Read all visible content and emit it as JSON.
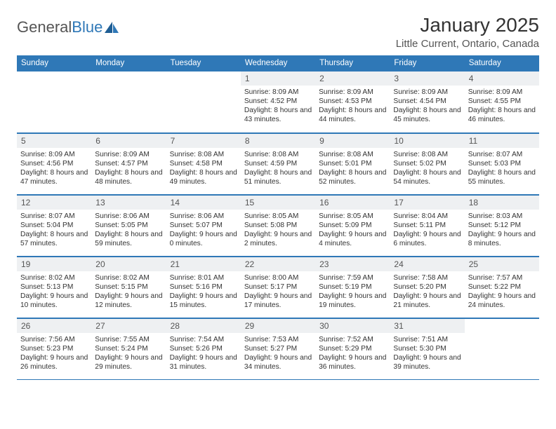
{
  "brand": {
    "name_part1": "General",
    "name_part2": "Blue"
  },
  "colors": {
    "header_bg": "#2f78b7",
    "header_text": "#ffffff",
    "daynum_bg": "#eef0f2",
    "border": "#2f78b7",
    "body_text": "#333333",
    "subtext": "#555555",
    "background": "#ffffff"
  },
  "title": "January 2025",
  "location": "Little Current, Ontario, Canada",
  "day_headers": [
    "Sunday",
    "Monday",
    "Tuesday",
    "Wednesday",
    "Thursday",
    "Friday",
    "Saturday"
  ],
  "fonts": {
    "title_size": 28,
    "location_size": 15,
    "header_size": 11.5,
    "cell_size": 10.2,
    "daynum_size": 12
  },
  "weeks": [
    [
      {
        "day": "",
        "sunrise": "",
        "sunset": "",
        "daylight": ""
      },
      {
        "day": "",
        "sunrise": "",
        "sunset": "",
        "daylight": ""
      },
      {
        "day": "",
        "sunrise": "",
        "sunset": "",
        "daylight": ""
      },
      {
        "day": "1",
        "sunrise": "Sunrise: 8:09 AM",
        "sunset": "Sunset: 4:52 PM",
        "daylight": "Daylight: 8 hours and 43 minutes."
      },
      {
        "day": "2",
        "sunrise": "Sunrise: 8:09 AM",
        "sunset": "Sunset: 4:53 PM",
        "daylight": "Daylight: 8 hours and 44 minutes."
      },
      {
        "day": "3",
        "sunrise": "Sunrise: 8:09 AM",
        "sunset": "Sunset: 4:54 PM",
        "daylight": "Daylight: 8 hours and 45 minutes."
      },
      {
        "day": "4",
        "sunrise": "Sunrise: 8:09 AM",
        "sunset": "Sunset: 4:55 PM",
        "daylight": "Daylight: 8 hours and 46 minutes."
      }
    ],
    [
      {
        "day": "5",
        "sunrise": "Sunrise: 8:09 AM",
        "sunset": "Sunset: 4:56 PM",
        "daylight": "Daylight: 8 hours and 47 minutes."
      },
      {
        "day": "6",
        "sunrise": "Sunrise: 8:09 AM",
        "sunset": "Sunset: 4:57 PM",
        "daylight": "Daylight: 8 hours and 48 minutes."
      },
      {
        "day": "7",
        "sunrise": "Sunrise: 8:08 AM",
        "sunset": "Sunset: 4:58 PM",
        "daylight": "Daylight: 8 hours and 49 minutes."
      },
      {
        "day": "8",
        "sunrise": "Sunrise: 8:08 AM",
        "sunset": "Sunset: 4:59 PM",
        "daylight": "Daylight: 8 hours and 51 minutes."
      },
      {
        "day": "9",
        "sunrise": "Sunrise: 8:08 AM",
        "sunset": "Sunset: 5:01 PM",
        "daylight": "Daylight: 8 hours and 52 minutes."
      },
      {
        "day": "10",
        "sunrise": "Sunrise: 8:08 AM",
        "sunset": "Sunset: 5:02 PM",
        "daylight": "Daylight: 8 hours and 54 minutes."
      },
      {
        "day": "11",
        "sunrise": "Sunrise: 8:07 AM",
        "sunset": "Sunset: 5:03 PM",
        "daylight": "Daylight: 8 hours and 55 minutes."
      }
    ],
    [
      {
        "day": "12",
        "sunrise": "Sunrise: 8:07 AM",
        "sunset": "Sunset: 5:04 PM",
        "daylight": "Daylight: 8 hours and 57 minutes."
      },
      {
        "day": "13",
        "sunrise": "Sunrise: 8:06 AM",
        "sunset": "Sunset: 5:05 PM",
        "daylight": "Daylight: 8 hours and 59 minutes."
      },
      {
        "day": "14",
        "sunrise": "Sunrise: 8:06 AM",
        "sunset": "Sunset: 5:07 PM",
        "daylight": "Daylight: 9 hours and 0 minutes."
      },
      {
        "day": "15",
        "sunrise": "Sunrise: 8:05 AM",
        "sunset": "Sunset: 5:08 PM",
        "daylight": "Daylight: 9 hours and 2 minutes."
      },
      {
        "day": "16",
        "sunrise": "Sunrise: 8:05 AM",
        "sunset": "Sunset: 5:09 PM",
        "daylight": "Daylight: 9 hours and 4 minutes."
      },
      {
        "day": "17",
        "sunrise": "Sunrise: 8:04 AM",
        "sunset": "Sunset: 5:11 PM",
        "daylight": "Daylight: 9 hours and 6 minutes."
      },
      {
        "day": "18",
        "sunrise": "Sunrise: 8:03 AM",
        "sunset": "Sunset: 5:12 PM",
        "daylight": "Daylight: 9 hours and 8 minutes."
      }
    ],
    [
      {
        "day": "19",
        "sunrise": "Sunrise: 8:02 AM",
        "sunset": "Sunset: 5:13 PM",
        "daylight": "Daylight: 9 hours and 10 minutes."
      },
      {
        "day": "20",
        "sunrise": "Sunrise: 8:02 AM",
        "sunset": "Sunset: 5:15 PM",
        "daylight": "Daylight: 9 hours and 12 minutes."
      },
      {
        "day": "21",
        "sunrise": "Sunrise: 8:01 AM",
        "sunset": "Sunset: 5:16 PM",
        "daylight": "Daylight: 9 hours and 15 minutes."
      },
      {
        "day": "22",
        "sunrise": "Sunrise: 8:00 AM",
        "sunset": "Sunset: 5:17 PM",
        "daylight": "Daylight: 9 hours and 17 minutes."
      },
      {
        "day": "23",
        "sunrise": "Sunrise: 7:59 AM",
        "sunset": "Sunset: 5:19 PM",
        "daylight": "Daylight: 9 hours and 19 minutes."
      },
      {
        "day": "24",
        "sunrise": "Sunrise: 7:58 AM",
        "sunset": "Sunset: 5:20 PM",
        "daylight": "Daylight: 9 hours and 21 minutes."
      },
      {
        "day": "25",
        "sunrise": "Sunrise: 7:57 AM",
        "sunset": "Sunset: 5:22 PM",
        "daylight": "Daylight: 9 hours and 24 minutes."
      }
    ],
    [
      {
        "day": "26",
        "sunrise": "Sunrise: 7:56 AM",
        "sunset": "Sunset: 5:23 PM",
        "daylight": "Daylight: 9 hours and 26 minutes."
      },
      {
        "day": "27",
        "sunrise": "Sunrise: 7:55 AM",
        "sunset": "Sunset: 5:24 PM",
        "daylight": "Daylight: 9 hours and 29 minutes."
      },
      {
        "day": "28",
        "sunrise": "Sunrise: 7:54 AM",
        "sunset": "Sunset: 5:26 PM",
        "daylight": "Daylight: 9 hours and 31 minutes."
      },
      {
        "day": "29",
        "sunrise": "Sunrise: 7:53 AM",
        "sunset": "Sunset: 5:27 PM",
        "daylight": "Daylight: 9 hours and 34 minutes."
      },
      {
        "day": "30",
        "sunrise": "Sunrise: 7:52 AM",
        "sunset": "Sunset: 5:29 PM",
        "daylight": "Daylight: 9 hours and 36 minutes."
      },
      {
        "day": "31",
        "sunrise": "Sunrise: 7:51 AM",
        "sunset": "Sunset: 5:30 PM",
        "daylight": "Daylight: 9 hours and 39 minutes."
      },
      {
        "day": "",
        "sunrise": "",
        "sunset": "",
        "daylight": ""
      }
    ]
  ]
}
